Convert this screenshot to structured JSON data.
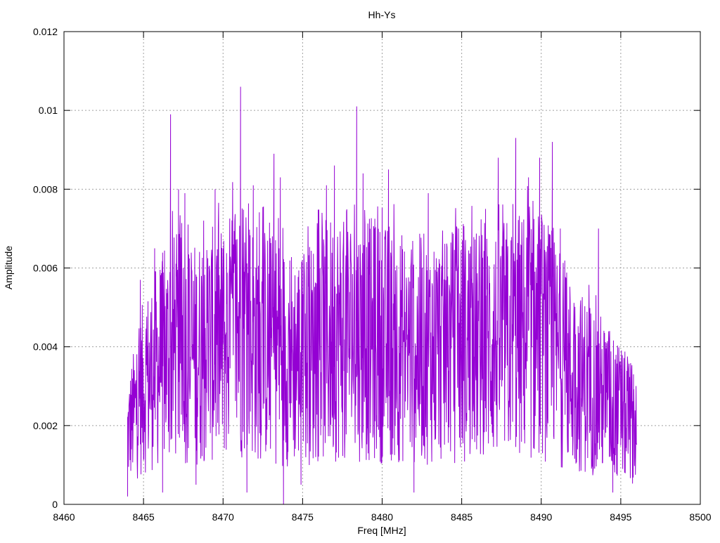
{
  "chart_data": {
    "type": "line",
    "title": "Hh-Ys",
    "xlabel": "Freq [MHz]",
    "ylabel": "Amplitude",
    "xlim": [
      8460,
      8500
    ],
    "ylim": [
      0,
      0.012
    ],
    "x_ticks": [
      "8460",
      "8465",
      "8470",
      "8475",
      "8480",
      "8485",
      "8490",
      "8495",
      "8500"
    ],
    "y_ticks": [
      "0",
      "0.002",
      "0.004",
      "0.006",
      "0.008",
      "0.01",
      "0.012"
    ],
    "grid": true,
    "line_color": "#9400d3",
    "series": [
      {
        "x_start": 8464.0,
        "x_end": 8496.0,
        "peaks": [
          [
            8464.0,
            0.0002
          ],
          [
            8464.8,
            0.0057
          ],
          [
            8465.7,
            0.0065
          ],
          [
            8466.2,
            0.0003
          ],
          [
            8466.7,
            0.0099
          ],
          [
            8467.2,
            0.008
          ],
          [
            8467.6,
            0.0079
          ],
          [
            8468.3,
            0.0005
          ],
          [
            8469.5,
            0.008
          ],
          [
            8470.0,
            0.0065
          ],
          [
            8471.1,
            0.0106
          ],
          [
            8471.5,
            0.0003
          ],
          [
            8471.9,
            0.0081
          ],
          [
            8473.2,
            0.0089
          ],
          [
            8473.6,
            0.0083
          ],
          [
            8473.8,
            0.0
          ],
          [
            8474.9,
            0.0005
          ],
          [
            8476.5,
            0.0081
          ],
          [
            8477.0,
            0.0086
          ],
          [
            8478.4,
            0.0101
          ],
          [
            8478.8,
            0.0084
          ],
          [
            8479.5,
            0.007
          ],
          [
            8480.4,
            0.0085
          ],
          [
            8482.0,
            0.0003
          ],
          [
            8482.9,
            0.0079
          ],
          [
            8484.8,
            0.007
          ],
          [
            8486.5,
            0.0075
          ],
          [
            8487.3,
            0.0088
          ],
          [
            8488.4,
            0.0093
          ],
          [
            8489.2,
            0.0083
          ],
          [
            8489.9,
            0.0088
          ],
          [
            8490.7,
            0.0092
          ],
          [
            8491.2,
            0.007
          ],
          [
            8493.6,
            0.007
          ],
          [
            8494.5,
            0.0003
          ],
          [
            8495.8,
            0.0033
          ]
        ],
        "envelope": [
          [
            8464.0,
            0.0018
          ],
          [
            8465.0,
            0.003
          ],
          [
            8466.0,
            0.0036
          ],
          [
            8467.0,
            0.004
          ],
          [
            8468.0,
            0.0038
          ],
          [
            8469.0,
            0.004
          ],
          [
            8470.0,
            0.0041
          ],
          [
            8471.0,
            0.0045
          ],
          [
            8472.0,
            0.0042
          ],
          [
            8473.0,
            0.004
          ],
          [
            8474.0,
            0.0038
          ],
          [
            8475.0,
            0.0037
          ],
          [
            8476.0,
            0.004
          ],
          [
            8477.0,
            0.0043
          ],
          [
            8478.0,
            0.0043
          ],
          [
            8479.0,
            0.0042
          ],
          [
            8480.0,
            0.0041
          ],
          [
            8481.0,
            0.004
          ],
          [
            8482.0,
            0.0039
          ],
          [
            8483.0,
            0.004
          ],
          [
            8484.0,
            0.004
          ],
          [
            8485.0,
            0.004
          ],
          [
            8486.0,
            0.004
          ],
          [
            8487.0,
            0.0041
          ],
          [
            8488.0,
            0.0042
          ],
          [
            8489.0,
            0.0043
          ],
          [
            8490.0,
            0.0043
          ],
          [
            8491.0,
            0.0038
          ],
          [
            8492.0,
            0.0032
          ],
          [
            8493.0,
            0.003
          ],
          [
            8494.0,
            0.0027
          ],
          [
            8495.0,
            0.0023
          ],
          [
            8496.0,
            0.002
          ]
        ]
      }
    ]
  }
}
